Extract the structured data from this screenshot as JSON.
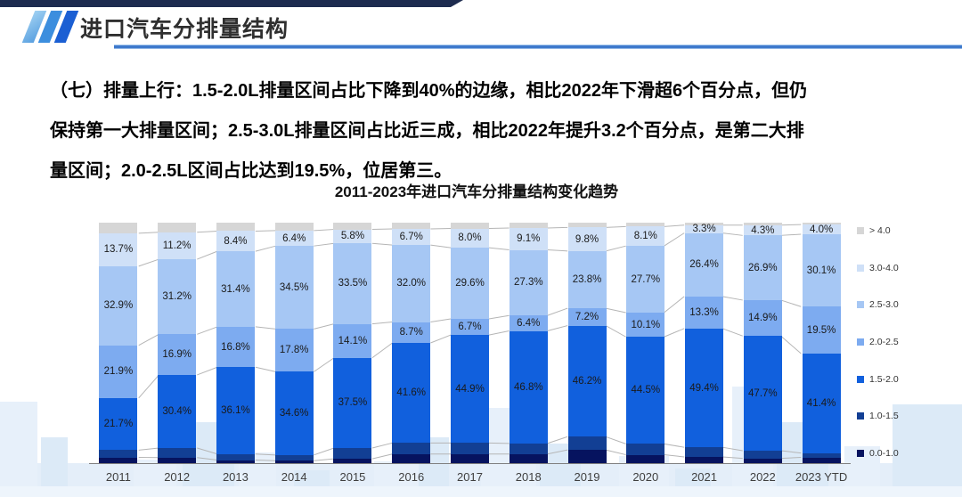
{
  "header": {
    "title": "进口汽车分排量结构"
  },
  "body": {
    "lines": [
      "（七）排量上行：1.5-2.0L排量区间占比下降到40%的边缘，相比2022年下滑超6个百分点，但仍",
      "保持第一大排量区间；2.5-3.0L排量区间占比近三成，相比2022年提升3.2个百分点，是第二大排",
      "量区间；2.0-2.5L区间占比达到19.5%，位居第三。"
    ]
  },
  "chart_data": {
    "type": "bar",
    "stacked": true,
    "title": "2011-2023年进口汽车分排量结构变化趋势",
    "unit": "%",
    "ylim": [
      0,
      100
    ],
    "legend_position": "right",
    "categories": [
      "2011",
      "2012",
      "2013",
      "2014",
      "2015",
      "2016",
      "2017",
      "2018",
      "2019",
      "2020",
      "2021",
      "2022",
      "2023 YTD"
    ],
    "series_bottom_up": [
      {
        "name": "0.0-1.0",
        "color": "#06135f",
        "labeled": false,
        "values": [
          2.4,
          2.3,
          1.3,
          1.0,
          1.8,
          3.8,
          3.8,
          3.8,
          5.5,
          3.5,
          2.6,
          2.0,
          2.4
        ]
      },
      {
        "name": "1.0-1.5",
        "color": "#123f94",
        "labeled": false,
        "values": [
          3.0,
          4.0,
          2.5,
          2.4,
          4.5,
          4.6,
          4.6,
          4.4,
          5.5,
          4.5,
          4.0,
          3.2,
          1.8
        ]
      },
      {
        "name": "1.5-2.0",
        "color": "#1160dd",
        "labeled": true,
        "values": [
          21.7,
          30.4,
          36.1,
          34.6,
          37.5,
          41.6,
          44.9,
          46.8,
          46.2,
          44.5,
          49.4,
          47.7,
          41.4
        ]
      },
      {
        "name": "2.0-2.5",
        "color": "#7dabf0",
        "labeled": true,
        "values": [
          21.9,
          16.9,
          16.8,
          17.8,
          14.1,
          8.7,
          6.7,
          6.4,
          7.2,
          10.1,
          13.3,
          14.9,
          19.5
        ]
      },
      {
        "name": "2.5-3.0",
        "color": "#a6c7f4",
        "labeled": true,
        "values": [
          32.9,
          31.2,
          31.4,
          34.5,
          33.5,
          32.0,
          29.6,
          27.3,
          23.8,
          27.7,
          26.4,
          26.9,
          30.1
        ]
      },
      {
        "name": "3.0-4.0",
        "color": "#cfe0f7",
        "labeled": true,
        "values": [
          13.7,
          11.2,
          8.4,
          6.4,
          5.8,
          6.7,
          8.0,
          9.1,
          9.8,
          8.1,
          3.3,
          4.3,
          4.0
        ]
      },
      {
        "name": "> 4.0",
        "color": "#d6d6d6",
        "labeled": false,
        "values": [
          4.4,
          4.0,
          3.5,
          3.3,
          2.8,
          2.6,
          2.4,
          2.2,
          2.0,
          1.6,
          1.0,
          1.0,
          0.8
        ]
      }
    ],
    "legend_top_down": [
      "> 4.0",
      "3.0-4.0",
      "2.5-3.0",
      "2.0-2.5",
      "1.5-2.0",
      "1.0-1.5",
      "0.0-1.0"
    ],
    "connector_line_color": "#b5b5b5"
  }
}
